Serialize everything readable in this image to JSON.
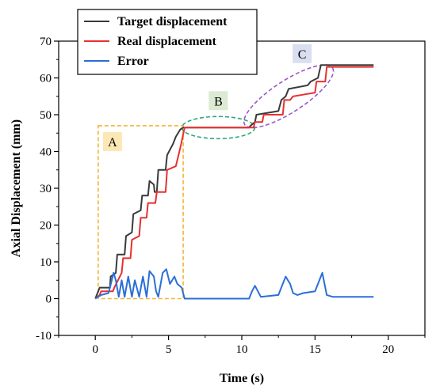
{
  "chart_data": {
    "type": "line",
    "xlabel": "Time (s)",
    "ylabel": "Axial Displacement (mm)",
    "xlim": [
      -2.5,
      22.5
    ],
    "ylim": [
      -10,
      70
    ],
    "x_ticks": [
      0,
      5,
      10,
      15,
      20
    ],
    "y_ticks": [
      -10,
      0,
      10,
      20,
      30,
      40,
      50,
      60,
      70
    ],
    "legend_position": "top-left",
    "series": [
      {
        "name": "Target displacement",
        "color": "#3a3a3a",
        "x": [
          0,
          0.2,
          0.3,
          1.0,
          1.05,
          1.4,
          1.5,
          2.0,
          2.1,
          2.5,
          2.6,
          3.1,
          3.2,
          3.6,
          3.7,
          4.0,
          4.05,
          4.2,
          4.3,
          4.8,
          4.9,
          5.3,
          5.5,
          5.8,
          6.0,
          10.5,
          10.6,
          10.9,
          11.0,
          12.5,
          12.7,
          13.0,
          13.2,
          14.5,
          14.7,
          15.2,
          15.4,
          19.0
        ],
        "y": [
          0,
          2,
          3,
          3,
          6,
          7,
          12,
          12,
          17,
          18,
          23,
          24,
          28,
          28,
          32,
          31,
          29,
          29,
          35,
          35,
          39,
          42,
          44,
          46,
          46.5,
          46.5,
          47,
          48,
          50,
          51,
          54,
          55,
          57,
          58,
          59,
          60,
          63.5,
          63.5
        ]
      },
      {
        "name": "Real displacement",
        "color": "#e83030",
        "x": [
          0,
          0.3,
          0.4,
          1.2,
          1.3,
          1.8,
          1.9,
          2.4,
          2.5,
          3.0,
          3.1,
          3.5,
          3.6,
          4.1,
          4.2,
          4.8,
          4.9,
          5.5,
          5.8,
          6.1,
          10.8,
          10.9,
          11.4,
          11.5,
          12.8,
          12.9,
          13.3,
          13.5,
          15.0,
          15.1,
          15.7,
          15.8,
          19.0
        ],
        "y": [
          0,
          1,
          2,
          2,
          3,
          7,
          11,
          11,
          16,
          17,
          22,
          22,
          26,
          26,
          29,
          29,
          35,
          36,
          41,
          46.5,
          46.5,
          48,
          48,
          50,
          50,
          54,
          54,
          55,
          56,
          59,
          59,
          63,
          63
        ]
      },
      {
        "name": "Error",
        "color": "#2a6fd8",
        "x": [
          0,
          0.2,
          0.4,
          0.9,
          1.0,
          1.25,
          1.4,
          1.6,
          1.8,
          2.0,
          2.25,
          2.5,
          2.7,
          3.0,
          3.25,
          3.5,
          3.7,
          4.0,
          4.15,
          4.3,
          4.6,
          4.85,
          5.1,
          5.4,
          5.6,
          5.9,
          6.1,
          6.5,
          10.5,
          10.7,
          10.9,
          11.1,
          11.3,
          12.5,
          12.8,
          13.0,
          13.3,
          13.5,
          13.8,
          14.2,
          15.0,
          15.3,
          15.5,
          15.8,
          16.2,
          19.0
        ],
        "y": [
          0,
          0.5,
          1,
          1.5,
          3,
          7,
          5,
          0.5,
          5,
          0.5,
          6,
          0.5,
          5,
          0.5,
          6,
          0.5,
          7.5,
          6,
          2,
          0.5,
          7,
          8,
          4,
          6,
          4,
          3,
          0,
          0,
          0,
          2,
          3.5,
          2,
          0.5,
          1,
          4,
          6,
          4,
          1.5,
          1,
          1.5,
          2,
          5,
          7,
          1,
          0.5,
          0.5
        ]
      }
    ],
    "annotations": [
      {
        "label": "A",
        "type": "rectangle",
        "x_range": [
          0.2,
          6
        ],
        "y_range": [
          0,
          47
        ]
      },
      {
        "label": "B",
        "type": "ellipse",
        "x_center": 8.4,
        "y_center": 46.5
      },
      {
        "label": "C",
        "type": "ellipse",
        "x_center": 13.2,
        "y_center": 55
      }
    ]
  }
}
